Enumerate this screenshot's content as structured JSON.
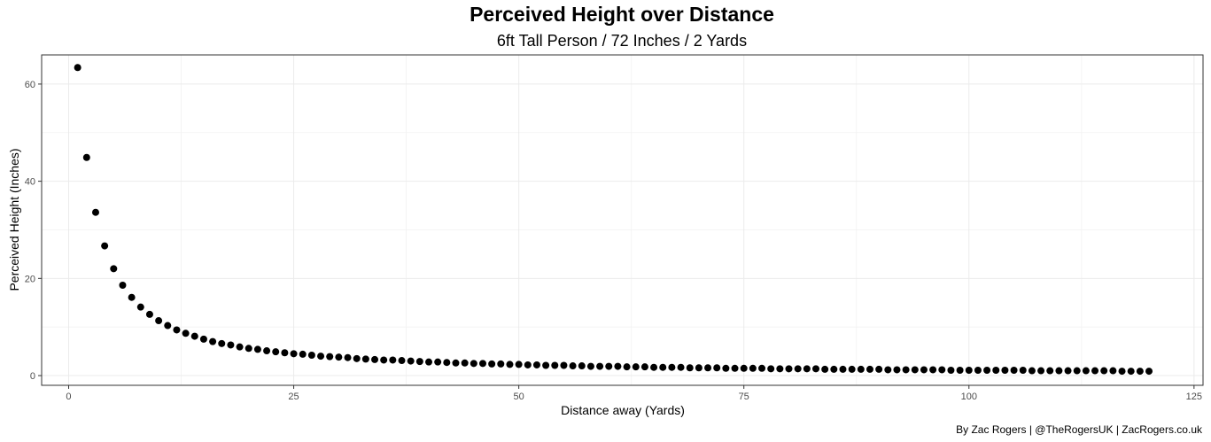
{
  "chart_data": {
    "type": "scatter",
    "title": "Perceived Height over Distance",
    "subtitle": "6ft Tall Person / 72 Inches / 2 Yards",
    "xlabel": "Distance away (Yards)",
    "ylabel": "Perceived Height (Inches)",
    "caption": "By Zac Rogers | @TheRogersUK | ZacRogers.co.uk",
    "xlim": [
      -3,
      126
    ],
    "ylim": [
      -2,
      66
    ],
    "x_ticks": [
      0,
      25,
      50,
      75,
      100,
      125
    ],
    "y_ticks": [
      0,
      20,
      40,
      60
    ],
    "grid": true,
    "legend": "none",
    "point_color": "#000000",
    "x": [
      1,
      2,
      3,
      4,
      5,
      6,
      7,
      8,
      9,
      10,
      11,
      12,
      13,
      14,
      15,
      16,
      17,
      18,
      19,
      20,
      21,
      22,
      23,
      24,
      25,
      26,
      27,
      28,
      29,
      30,
      31,
      32,
      33,
      34,
      35,
      36,
      37,
      38,
      39,
      40,
      41,
      42,
      43,
      44,
      45,
      46,
      47,
      48,
      49,
      50,
      51,
      52,
      53,
      54,
      55,
      56,
      57,
      58,
      59,
      60,
      61,
      62,
      63,
      64,
      65,
      66,
      67,
      68,
      69,
      70,
      71,
      72,
      73,
      74,
      75,
      76,
      77,
      78,
      79,
      80,
      81,
      82,
      83,
      84,
      85,
      86,
      87,
      88,
      89,
      90,
      91,
      92,
      93,
      94,
      95,
      96,
      97,
      98,
      99,
      100,
      101,
      102,
      103,
      104,
      105,
      106,
      107,
      108,
      109,
      110,
      111,
      112,
      113,
      114,
      115,
      116,
      117,
      118,
      119,
      120
    ],
    "y": [
      63.4,
      44.9,
      33.6,
      26.7,
      22.0,
      18.6,
      16.1,
      14.1,
      12.6,
      11.3,
      10.3,
      9.4,
      8.7,
      8.1,
      7.5,
      7.0,
      6.6,
      6.3,
      5.9,
      5.6,
      5.4,
      5.1,
      4.9,
      4.7,
      4.5,
      4.4,
      4.2,
      4.0,
      3.9,
      3.8,
      3.7,
      3.5,
      3.4,
      3.3,
      3.2,
      3.2,
      3.1,
      3.0,
      2.9,
      2.8,
      2.8,
      2.7,
      2.6,
      2.6,
      2.5,
      2.5,
      2.4,
      2.4,
      2.3,
      2.3,
      2.2,
      2.2,
      2.1,
      2.1,
      2.1,
      2.0,
      2.0,
      1.9,
      1.9,
      1.9,
      1.9,
      1.8,
      1.8,
      1.8,
      1.7,
      1.7,
      1.7,
      1.7,
      1.6,
      1.6,
      1.6,
      1.6,
      1.5,
      1.5,
      1.5,
      1.5,
      1.5,
      1.4,
      1.4,
      1.4,
      1.4,
      1.4,
      1.4,
      1.3,
      1.3,
      1.3,
      1.3,
      1.3,
      1.3,
      1.3,
      1.2,
      1.2,
      1.2,
      1.2,
      1.2,
      1.2,
      1.2,
      1.1,
      1.1,
      1.1,
      1.1,
      1.1,
      1.1,
      1.1,
      1.1,
      1.1,
      1.0,
      1.0,
      1.0,
      1.0,
      1.0,
      1.0,
      1.0,
      1.0,
      1.0,
      1.0,
      0.9,
      0.9,
      0.9,
      0.9
    ]
  }
}
